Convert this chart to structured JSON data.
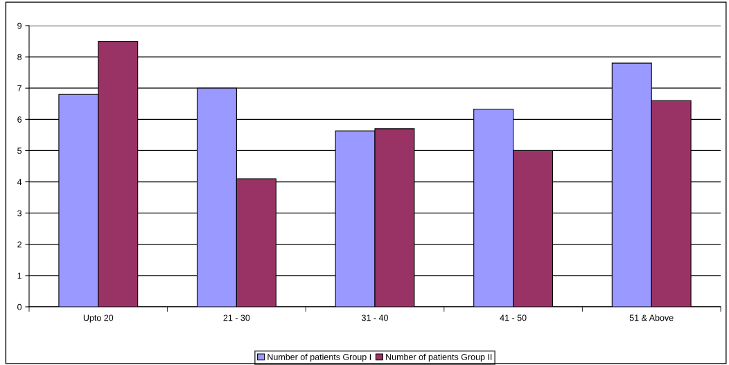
{
  "chart_data": {
    "type": "bar",
    "categories": [
      "Upto 20",
      "21 - 30",
      "31 - 40",
      "41 - 50",
      "51 & Above"
    ],
    "series": [
      {
        "name": "Number of patients Group I",
        "color": "#9999ff",
        "values": [
          6.8,
          7.0,
          5.63,
          6.33,
          7.8
        ]
      },
      {
        "name": "Number of patients Group II",
        "color": "#993366",
        "values": [
          8.5,
          4.1,
          5.7,
          5.0,
          6.6
        ]
      }
    ],
    "ylim": [
      0,
      9
    ],
    "yticks": [
      0,
      1,
      2,
      3,
      4,
      5,
      6,
      7,
      8,
      9
    ],
    "grid": "y",
    "legend": "bottom"
  }
}
